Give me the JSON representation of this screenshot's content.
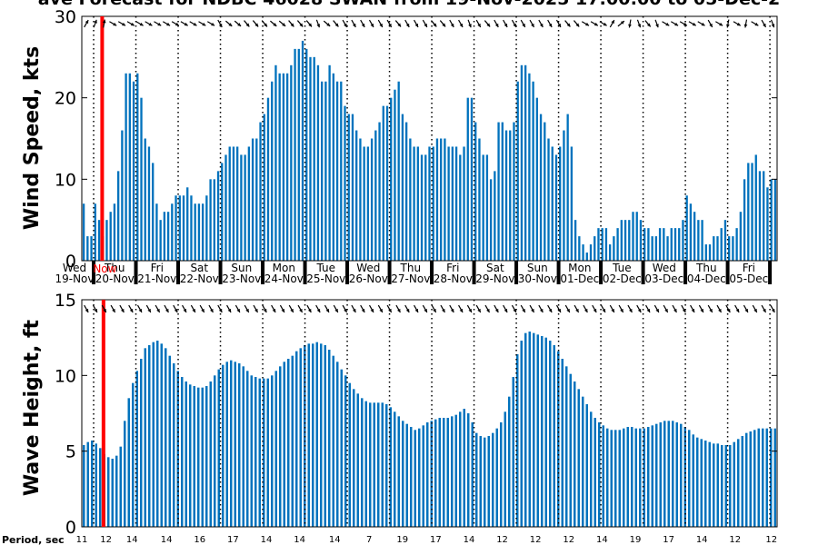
{
  "title": "ave Forecast for NDBC 46028 SWAN from 19-Nov-2025 17:00:00 to 05-Dec-2",
  "period_label": "Period, sec",
  "now_label": "Now",
  "colors": {
    "bars": "#0072bd",
    "now_line": "#ff0000",
    "arrows": "#000000"
  },
  "arrow_icon": "wind-direction-arrow-icon",
  "day_labels": [
    {
      "dow": "Wed",
      "date": "19-Nov"
    },
    {
      "dow": "Thu",
      "date": "20-Nov"
    },
    {
      "dow": "Fri",
      "date": "21-Nov"
    },
    {
      "dow": "Sat",
      "date": "22-Nov"
    },
    {
      "dow": "Sun",
      "date": "23-Nov"
    },
    {
      "dow": "Mon",
      "date": "24-Nov"
    },
    {
      "dow": "Tue",
      "date": "25-Nov"
    },
    {
      "dow": "Wed",
      "date": "26-Nov"
    },
    {
      "dow": "Thu",
      "date": "27-Nov"
    },
    {
      "dow": "Fri",
      "date": "28-Nov"
    },
    {
      "dow": "Sat",
      "date": "29-Nov"
    },
    {
      "dow": "Sun",
      "date": "30-Nov"
    },
    {
      "dow": "Mon",
      "date": "01-Dec"
    },
    {
      "dow": "Tue",
      "date": "02-Dec"
    },
    {
      "dow": "Wed",
      "date": "03-Dec"
    },
    {
      "dow": "Thu",
      "date": "04-Dec"
    },
    {
      "dow": "Fri",
      "date": "05-Dec"
    }
  ],
  "chart_data": [
    {
      "type": "bar",
      "ylabel": "Wind Speed, kts",
      "ylim": [
        0,
        30
      ],
      "yticks": [
        0,
        10,
        20,
        30
      ],
      "grid": "dotted vertical lines at midnight",
      "series": [
        {
          "values": [
            7,
            3,
            3,
            7,
            5,
            3,
            5,
            6,
            7,
            11,
            16,
            23,
            23,
            22,
            23,
            20,
            15,
            14,
            12,
            7,
            5,
            6,
            6,
            7,
            8,
            8,
            8,
            9,
            8,
            7,
            7,
            7,
            8,
            10,
            10,
            11,
            12,
            13,
            14,
            14,
            14,
            13,
            13,
            14,
            15,
            15,
            17,
            18,
            20,
            22,
            24,
            23,
            23,
            23,
            24,
            26,
            26,
            27,
            26,
            25,
            25,
            24,
            22,
            22,
            24,
            23,
            22,
            22,
            19,
            18,
            18,
            16,
            15,
            14,
            14,
            15,
            16,
            17,
            19,
            19,
            20,
            21,
            22,
            18,
            17,
            15,
            14,
            14,
            13,
            13,
            14,
            14,
            15,
            15,
            15,
            14,
            14,
            14,
            13,
            14,
            20,
            20,
            17,
            15,
            13,
            13,
            10,
            11,
            17,
            17,
            16,
            16,
            17,
            22,
            24,
            24,
            23,
            22,
            20,
            18,
            17,
            15,
            14,
            13,
            14,
            16,
            18,
            14,
            5,
            3,
            2,
            1,
            2,
            3,
            4,
            4,
            4,
            2,
            3,
            4,
            5,
            5,
            5,
            6,
            6,
            5,
            4,
            4,
            3,
            3,
            4,
            4,
            3,
            4,
            4,
            4,
            5,
            8,
            7,
            6,
            5,
            5,
            2,
            2,
            3,
            3,
            4,
            5,
            3,
            3,
            4,
            6,
            10,
            12,
            12,
            13,
            11,
            11,
            9,
            10,
            10
          ]
        }
      ]
    },
    {
      "type": "bar",
      "ylabel": "Wave Height, ft",
      "ylim": [
        0,
        15
      ],
      "yticks": [
        0,
        5,
        10,
        15
      ],
      "grid": "dotted vertical lines at midnight",
      "series": [
        {
          "values": [
            5.4,
            5.6,
            5.7,
            5.5,
            5.2,
            4.8,
            4.6,
            4.5,
            4.7,
            5.3,
            7.0,
            8.5,
            9.5,
            10.3,
            11.1,
            11.8,
            12.0,
            12.2,
            12.3,
            12.1,
            11.8,
            11.3,
            10.8,
            10.3,
            9.9,
            9.6,
            9.4,
            9.3,
            9.2,
            9.2,
            9.3,
            9.6,
            10.0,
            10.4,
            10.7,
            10.9,
            11.0,
            10.9,
            10.8,
            10.6,
            10.3,
            10.0,
            9.9,
            9.8,
            9.8,
            9.8,
            10.0,
            10.3,
            10.6,
            10.9,
            11.1,
            11.3,
            11.6,
            11.8,
            12.0,
            12.1,
            12.1,
            12.2,
            12.1,
            12.0,
            11.7,
            11.3,
            10.9,
            10.4,
            10.0,
            9.5,
            9.1,
            8.8,
            8.5,
            8.3,
            8.2,
            8.2,
            8.2,
            8.2,
            8.1,
            7.9,
            7.6,
            7.3,
            7.0,
            6.8,
            6.6,
            6.4,
            6.5,
            6.7,
            6.9,
            7.0,
            7.1,
            7.2,
            7.2,
            7.2,
            7.3,
            7.4,
            7.6,
            7.8,
            7.5,
            6.9,
            6.2,
            6.0,
            5.9,
            6.0,
            6.2,
            6.5,
            6.9,
            7.6,
            8.6,
            9.9,
            11.4,
            12.3,
            12.8,
            12.9,
            12.8,
            12.7,
            12.6,
            12.5,
            12.3,
            12.0,
            11.6,
            11.1,
            10.6,
            10.1,
            9.6,
            9.1,
            8.6,
            8.1,
            7.6,
            7.2,
            6.9,
            6.7,
            6.5,
            6.4,
            6.4,
            6.4,
            6.5,
            6.6,
            6.6,
            6.5,
            6.5,
            6.5,
            6.6,
            6.7,
            6.8,
            6.9,
            7.0,
            7.0,
            7.0,
            6.9,
            6.8,
            6.6,
            6.4,
            6.1,
            5.9,
            5.8,
            5.7,
            5.6,
            5.5,
            5.5,
            5.4,
            5.4,
            5.4,
            5.6,
            5.8,
            6.0,
            6.2,
            6.3,
            6.4,
            6.5,
            6.5,
            6.5,
            6.5,
            6.5
          ]
        }
      ]
    }
  ],
  "wind_arrows_deg": [
    210,
    200,
    190,
    300,
    300,
    300,
    300,
    300,
    300,
    300,
    300,
    300,
    300,
    300,
    300,
    330,
    310,
    310,
    320,
    320,
    320,
    310,
    310,
    320,
    320,
    320,
    340,
    310,
    320,
    330,
    330,
    330,
    330,
    330,
    330,
    320,
    330,
    330,
    330,
    320,
    320,
    330,
    330,
    340,
    330,
    320,
    330,
    330,
    330,
    330,
    330,
    330,
    330,
    330,
    320,
    320,
    300,
    300,
    300,
    210,
    230,
    10,
    340,
    320,
    340,
    300,
    300,
    300,
    300,
    300,
    330,
    300,
    10,
    300,
    10,
    300,
    330,
    340
  ],
  "wave_arrows_deg": [
    330,
    330,
    330,
    330,
    330,
    330,
    330,
    330,
    330,
    330,
    330,
    330,
    330,
    330,
    330,
    330,
    330,
    330,
    330,
    330,
    330,
    330,
    330,
    330,
    330,
    330,
    330,
    330,
    330,
    330,
    330,
    330,
    330,
    330,
    330,
    330,
    330,
    330,
    330,
    330,
    330,
    330,
    330,
    330,
    330,
    330,
    330,
    330,
    330,
    330,
    330,
    330,
    330,
    330,
    330,
    330,
    330,
    330,
    330,
    330,
    330,
    330,
    330,
    330,
    330,
    330,
    330,
    330,
    330,
    330,
    330,
    330,
    330,
    330,
    330,
    330,
    330,
    330
  ],
  "periods": [
    {
      "label": "11",
      "t": 0
    },
    {
      "label": "12",
      "t": 0.04
    },
    {
      "label": "14",
      "t": 0.083
    },
    {
      "label": "14",
      "t": 0.14
    },
    {
      "label": "16",
      "t": 0.195
    },
    {
      "label": "17",
      "t": 0.25
    },
    {
      "label": "14",
      "t": 0.305
    },
    {
      "label": "14",
      "t": 0.36
    },
    {
      "label": "14",
      "t": 0.418
    },
    {
      "label": "7",
      "t": 0.475
    },
    {
      "label": "19",
      "t": 0.53
    },
    {
      "label": "17",
      "t": 0.585
    },
    {
      "label": "14",
      "t": 0.64
    },
    {
      "label": "12",
      "t": 0.695
    },
    {
      "label": "12",
      "t": 0.75
    },
    {
      "label": "12",
      "t": 0.805
    },
    {
      "label": "14",
      "t": 0.86
    },
    {
      "label": "19",
      "t": 0.915
    },
    {
      "label": "17",
      "t": 0.97
    },
    {
      "label": "14",
      "t": 1.025
    },
    {
      "label": "12",
      "t": 1.08
    },
    {
      "label": "12",
      "t": 1.14
    }
  ]
}
